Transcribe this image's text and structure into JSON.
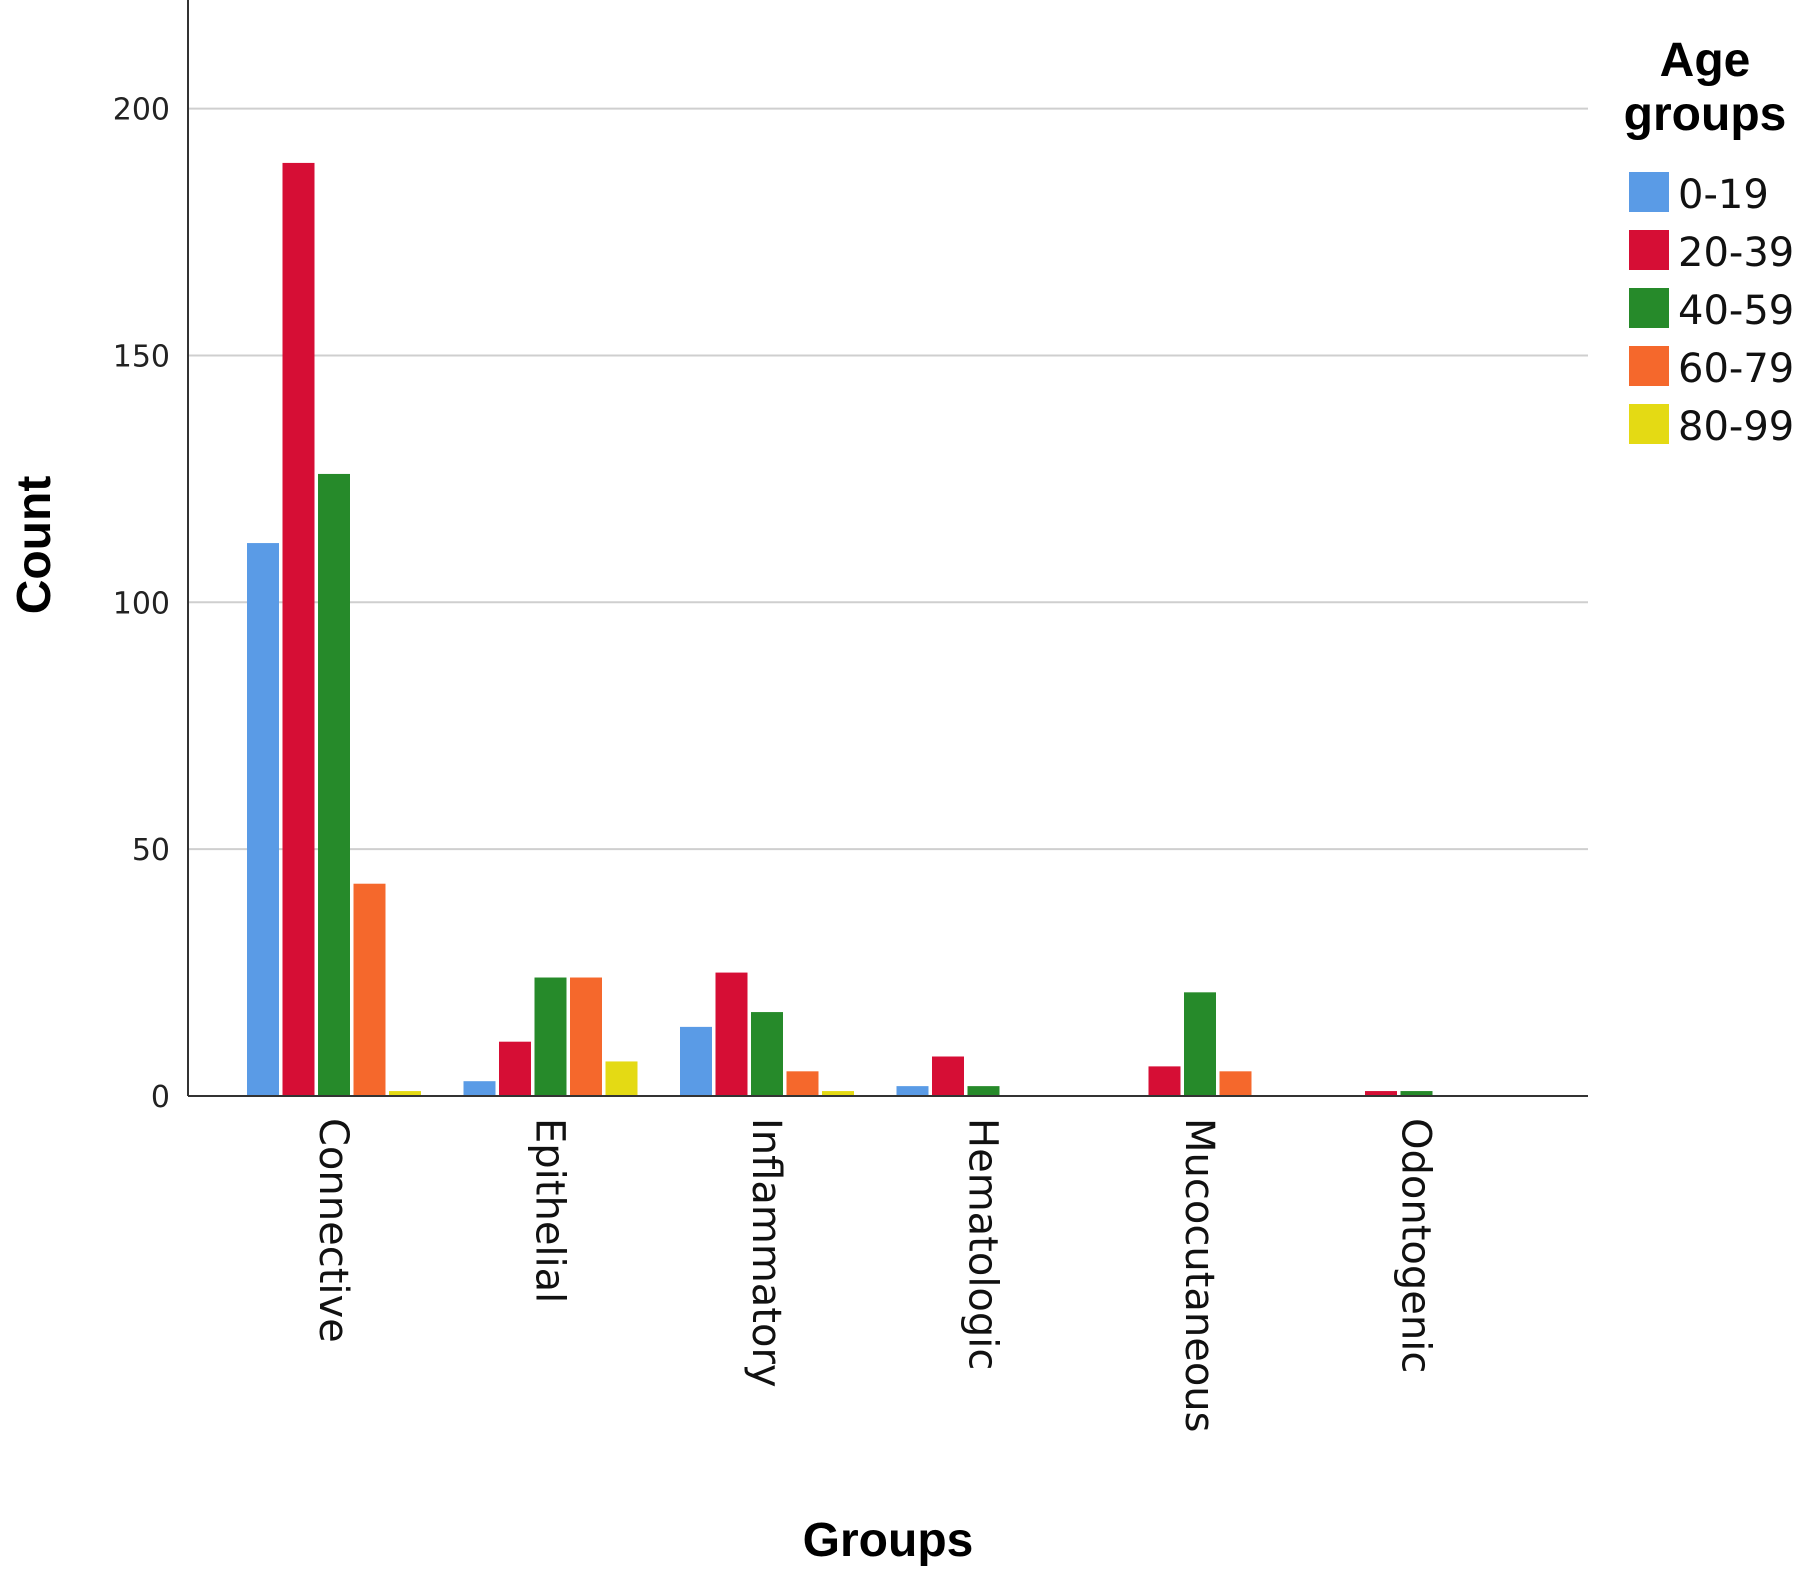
{
  "chart_data": {
    "type": "bar",
    "categories": [
      "Connective",
      "Epithelial",
      "Inflammatory",
      "Hematologic",
      "Mucocutaneous",
      "Odontogenic"
    ],
    "series": [
      {
        "name": "0-19",
        "color": "#5a9be6",
        "values": [
          112,
          3,
          14,
          2,
          0,
          0
        ]
      },
      {
        "name": "20-39",
        "color": "#d60e35",
        "values": [
          189,
          11,
          25,
          8,
          6,
          1
        ]
      },
      {
        "name": "40-59",
        "color": "#268a2a",
        "values": [
          126,
          24,
          17,
          2,
          21,
          1
        ]
      },
      {
        "name": "60-79",
        "color": "#f5682c",
        "values": [
          43,
          24,
          5,
          0,
          5,
          0
        ]
      },
      {
        "name": "80-99",
        "color": "#e4da14",
        "values": [
          1,
          7,
          1,
          0,
          0,
          0
        ]
      }
    ],
    "xlabel": "Groups",
    "ylabel": "Count",
    "legend_title_lines": [
      "Age",
      "groups"
    ],
    "ylim": [
      0,
      222
    ],
    "yticks": [
      "0",
      "50",
      "100",
      "150",
      "200"
    ],
    "grid": true,
    "legend_position": "top-right"
  }
}
